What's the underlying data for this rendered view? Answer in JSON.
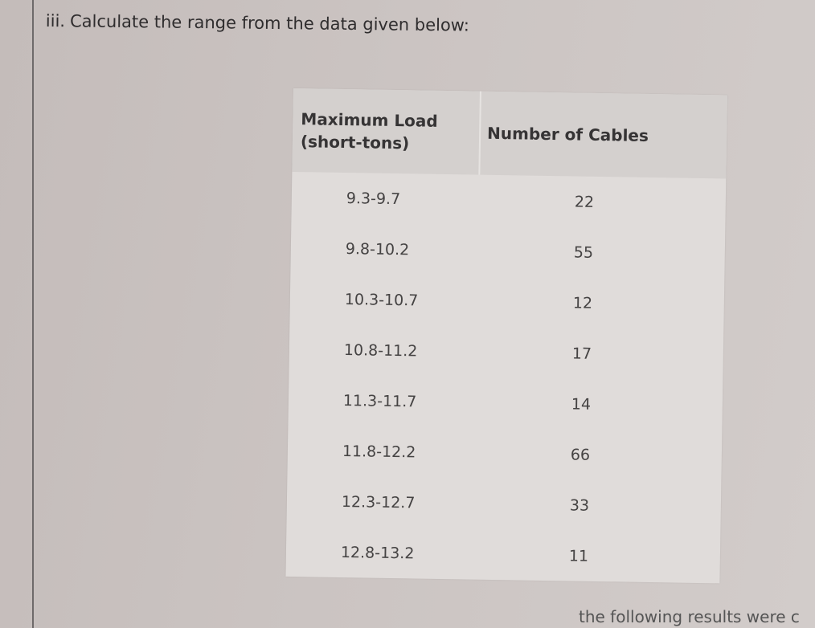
{
  "question": {
    "label": "iii.",
    "text": "Calculate the range  from the data given below:"
  },
  "table": {
    "headers": [
      "Maximum Load (short-tons)",
      "Number of Cables"
    ],
    "rows": [
      {
        "load": "9.3-9.7",
        "cables": "22"
      },
      {
        "load": "9.8-10.2",
        "cables": "55"
      },
      {
        "load": "10.3-10.7",
        "cables": "12"
      },
      {
        "load": "10.8-11.2",
        "cables": "17"
      },
      {
        "load": "11.3-11.7",
        "cables": "14"
      },
      {
        "load": "11.8-12.2",
        "cables": "66"
      },
      {
        "load": "12.3-12.7",
        "cables": "33"
      },
      {
        "load": "12.8-13.2",
        "cables": "11"
      }
    ]
  },
  "footer_text": "the following results were c"
}
